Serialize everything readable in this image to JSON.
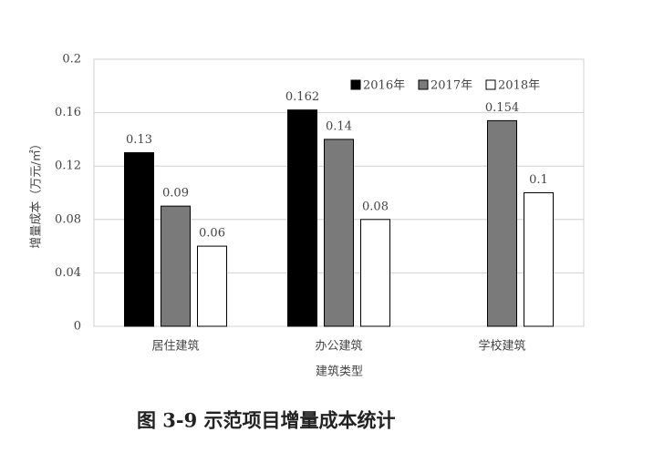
{
  "chart_data": {
    "type": "bar",
    "y_label": "增量成本（万元/㎡）",
    "x_label": "建筑类型",
    "caption": "图 3-9 示范项目增量成本统计",
    "categories": [
      "居住建筑",
      "办公建筑",
      "学校建筑"
    ],
    "series": [
      {
        "name": "2016年",
        "color": "#000000",
        "values": [
          0.13,
          0.162,
          null
        ]
      },
      {
        "name": "2017年",
        "color": "#7a7a7a",
        "values": [
          0.09,
          0.14,
          0.154
        ]
      },
      {
        "name": "2018年",
        "color": "#ffffff",
        "values": [
          0.06,
          0.08,
          0.1
        ]
      }
    ],
    "ylim": [
      0,
      0.2
    ],
    "yticks": [
      0,
      0.04,
      0.08,
      0.12,
      0.16,
      0.2
    ],
    "grid": true,
    "legend": "top-right"
  }
}
